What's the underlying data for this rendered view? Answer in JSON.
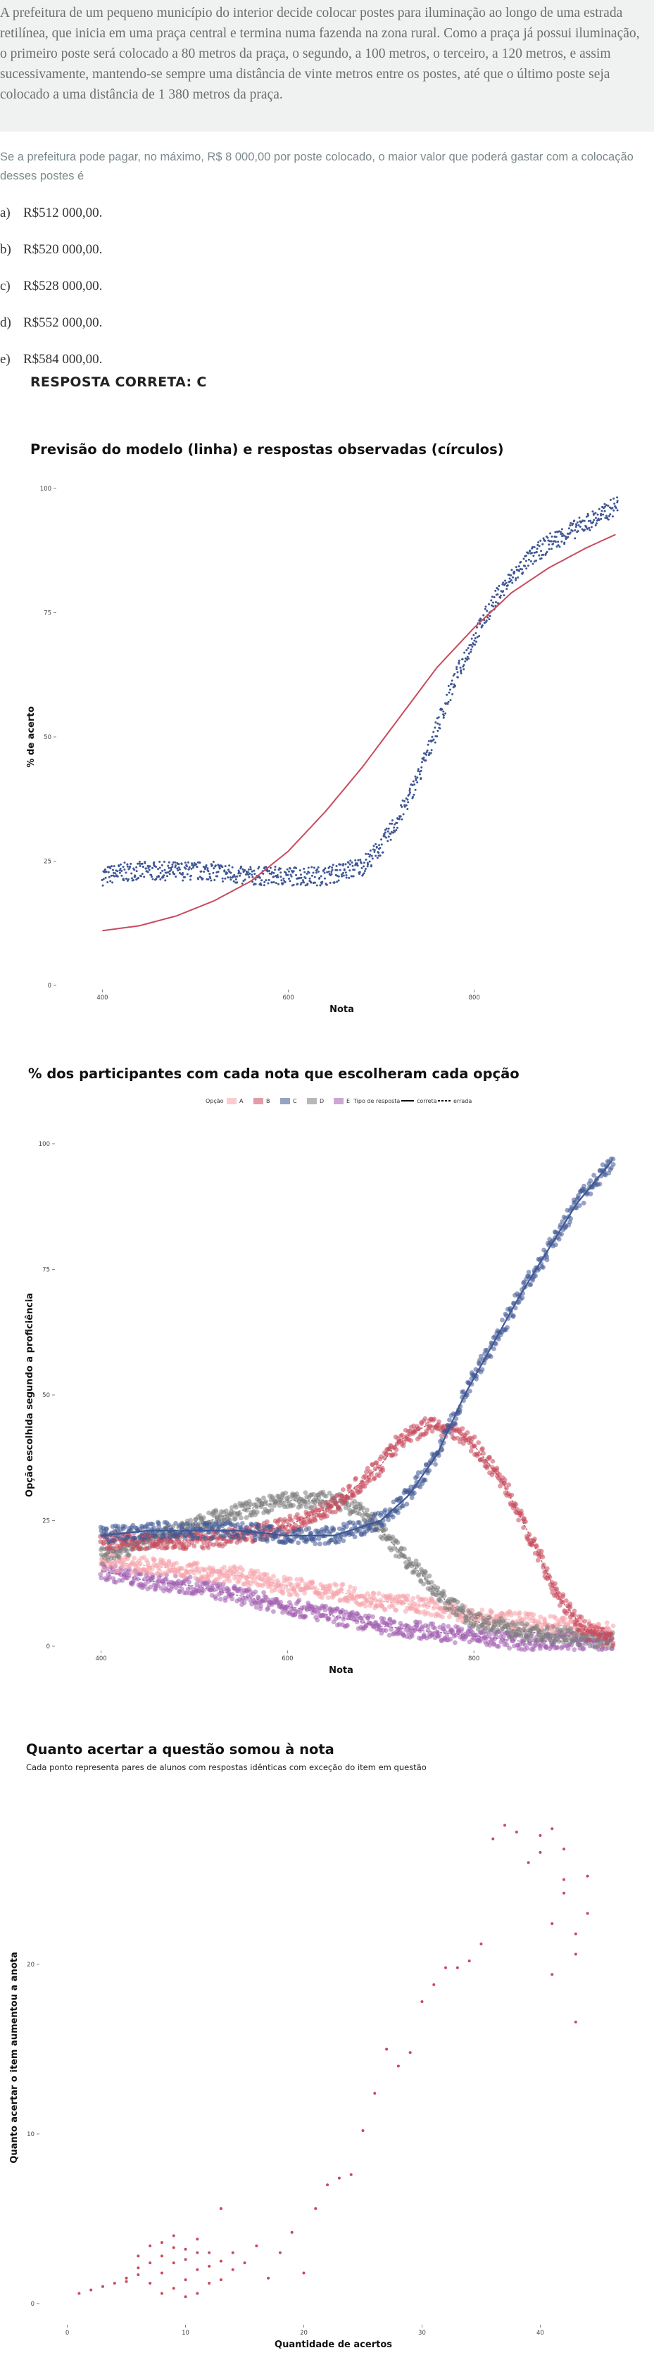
{
  "question": {
    "text": "A prefeitura de um pequeno município do interior decide colocar postes para  iluminação ao longo de uma estrada retilínea, que inicia em uma praça central e termina numa fazenda na zona rural. Como a praça já possui iluminação, o primeiro poste será colocado a 80 metros da praça, o segundo, a 100 metros, o terceiro, a 120 metros, e assim sucessivamente, mantendo-se sempre uma distância de vinte metros entre os postes, até que o último poste seja colocado a uma distância de 1 380 metros da praça.",
    "stem": "Se a prefeitura pode pagar, no máximo, R$ 8 000,00 por poste colocado, o maior valor que poderá gastar com a colocação desses postes é",
    "options": [
      {
        "letter": "a)",
        "text": "R$512 000,00."
      },
      {
        "letter": "b)",
        "text": "R$520 000,00."
      },
      {
        "letter": "c)",
        "text": "R$528 000,00."
      },
      {
        "letter": "d)",
        "text": "R$552 000,00."
      },
      {
        "letter": "e)",
        "text": "R$584 000,00."
      }
    ],
    "answer": "RESPOSTA CORRETA: C"
  },
  "chart_data": [
    {
      "type": "scatter",
      "title": "Previsão do modelo (linha) e respostas observadas (círculos)",
      "xlabel": "Nota",
      "ylabel": "% de acerto",
      "x_ticks": [
        400,
        600,
        800
      ],
      "y_ticks": [
        0,
        25,
        50,
        75,
        100
      ],
      "xlim": [
        355,
        960
      ],
      "ylim": [
        0,
        100
      ],
      "grid": false,
      "series": [
        {
          "role": "observed",
          "color": "#3f5794",
          "x": [
            400,
            430,
            460,
            490,
            520,
            550,
            580,
            610,
            640,
            660,
            680,
            700,
            720,
            740,
            760,
            780,
            800,
            820,
            840,
            860,
            880,
            900,
            920,
            940,
            955
          ],
          "y": [
            22,
            23,
            23,
            23,
            23,
            22,
            22,
            22,
            22,
            23,
            24,
            28,
            34,
            42,
            52,
            62,
            70,
            77,
            82,
            86,
            89,
            91,
            93,
            95,
            97
          ]
        },
        {
          "role": "model",
          "color": "#c84b5c",
          "x": [
            400,
            440,
            480,
            520,
            560,
            600,
            640,
            680,
            720,
            760,
            800,
            840,
            880,
            920,
            955
          ],
          "y": [
            11,
            12,
            14,
            17,
            21,
            27,
            35,
            44,
            54,
            64,
            72,
            79,
            84,
            88,
            91
          ]
        }
      ]
    },
    {
      "type": "scatter",
      "title": "% dos participantes com cada nota que escolheram cada opção",
      "xlabel": "Nota",
      "ylabel": "Opção escolhida segundo a proficiência",
      "legend_placement": "top",
      "legend_option_title": "Opção",
      "legend_type_title": "Tipo de resposta",
      "legend_type_entries": [
        "correta",
        "errada"
      ],
      "x_ticks": [
        400,
        600,
        800
      ],
      "y_ticks": [
        0,
        25,
        50,
        75,
        100
      ],
      "xlim": [
        355,
        960
      ],
      "ylim": [
        0,
        100
      ],
      "grid": false,
      "series": [
        {
          "name": "A",
          "color": "#f6a3aa",
          "x": [
            400,
            450,
            500,
            550,
            600,
            650,
            700,
            750,
            800,
            850,
            900,
            950
          ],
          "y": [
            17,
            16,
            15,
            14,
            12,
            11,
            9,
            8,
            6,
            5,
            4,
            3
          ]
        },
        {
          "name": "B",
          "color": "#c84b5c",
          "x": [
            400,
            450,
            500,
            550,
            600,
            650,
            700,
            720,
            750,
            780,
            800,
            830,
            860,
            890,
            920,
            950
          ],
          "y": [
            21,
            21,
            21,
            22,
            24,
            28,
            36,
            41,
            44,
            43,
            40,
            33,
            22,
            10,
            3,
            1
          ]
        },
        {
          "name": "C",
          "color": "#3f5794",
          "x": [
            400,
            450,
            500,
            550,
            600,
            650,
            700,
            730,
            760,
            790,
            820,
            850,
            880,
            910,
            950
          ],
          "y": [
            22,
            23,
            23,
            23,
            22,
            22,
            25,
            30,
            38,
            50,
            60,
            70,
            79,
            88,
            97
          ]
        },
        {
          "name": "D",
          "color": "#7d7d7d",
          "x": [
            400,
            450,
            500,
            550,
            600,
            650,
            680,
            710,
            740,
            770,
            800,
            850,
            900,
            950
          ],
          "y": [
            18,
            21,
            24,
            27,
            29,
            29,
            27,
            21,
            15,
            9,
            5,
            3,
            2,
            1
          ]
        },
        {
          "name": "E",
          "color": "#a25fb0",
          "x": [
            400,
            450,
            500,
            550,
            600,
            650,
            700,
            750,
            800,
            850,
            900,
            950
          ],
          "y": [
            15,
            13,
            12,
            10,
            8,
            6,
            4,
            3,
            2,
            1,
            1,
            1
          ]
        }
      ]
    },
    {
      "type": "scatter",
      "title": "Quanto acertar a questão somou à nota",
      "subtitle": "Cada ponto representa pares de alunos com respostas idênticas com exceção do item em questão",
      "xlabel": "Quantidade de acertos",
      "ylabel": "Quanto acertar o item aumentou a anota",
      "x_ticks": [
        0,
        10,
        20,
        30,
        40
      ],
      "y_ticks": [
        0,
        10,
        20
      ],
      "xlim": [
        -2,
        47
      ],
      "ylim": [
        -1,
        30
      ],
      "grid": false,
      "color": "#c84b5c",
      "x": [
        1,
        2,
        3,
        4,
        5,
        5,
        6,
        6,
        6,
        7,
        7,
        7,
        8,
        8,
        8,
        8,
        9,
        9,
        9,
        9,
        10,
        10,
        10,
        10,
        11,
        11,
        11,
        11,
        12,
        12,
        12,
        13,
        13,
        13,
        14,
        14,
        15,
        16,
        17,
        18,
        19,
        20,
        21,
        22,
        23,
        24,
        25,
        26,
        27,
        28,
        29,
        30,
        31,
        32,
        33,
        34,
        35,
        36,
        37,
        38,
        39,
        40,
        40,
        41,
        41,
        41,
        42,
        42,
        42,
        43,
        43,
        43,
        44,
        44
      ],
      "y": [
        0.6,
        0.8,
        1.0,
        1.2,
        1.3,
        1.5,
        1.7,
        2.1,
        2.8,
        1.2,
        2.4,
        3.4,
        0.6,
        1.8,
        2.8,
        3.6,
        0.9,
        2.4,
        3.3,
        4.0,
        0.4,
        1.4,
        2.6,
        3.2,
        0.6,
        2.0,
        3.0,
        3.8,
        1.2,
        2.2,
        3.0,
        1.4,
        2.5,
        5.6,
        2.0,
        3.0,
        2.4,
        3.4,
        1.5,
        3.0,
        4.2,
        1.8,
        5.6,
        7.0,
        7.4,
        7.6,
        10.2,
        12.4,
        15.0,
        14.0,
        14.8,
        17.8,
        18.8,
        19.8,
        19.8,
        20.2,
        21.2,
        27.4,
        28.2,
        27.8,
        26.0,
        27.6,
        26.6,
        28.0,
        22.4,
        19.4,
        26.8,
        24.2,
        25.0,
        20.6,
        21.8,
        16.6,
        25.2,
        23.0
      ]
    }
  ]
}
